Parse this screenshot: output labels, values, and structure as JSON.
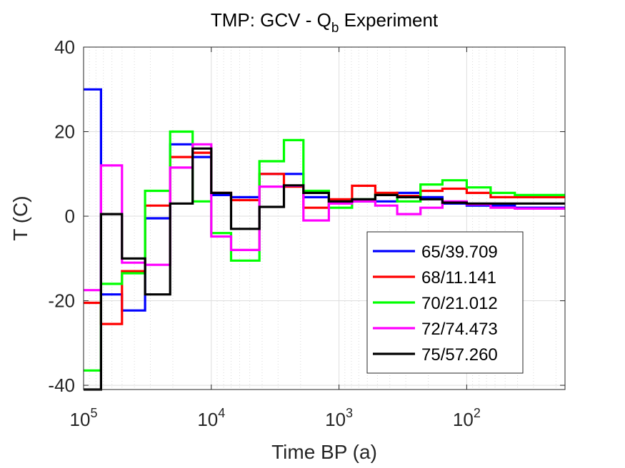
{
  "chart_data": {
    "type": "line",
    "title_main": "TMP: GCV - Q",
    "title_sub": "b",
    "title_tail": " Experiment",
    "xlabel": "Time BP (a)",
    "ylabel": "T (C)",
    "x_scale": "log",
    "x_reversed": true,
    "xlim": [
      100000,
      17
    ],
    "ylim": [
      -41,
      40
    ],
    "x_ticks": [
      {
        "value": 100000,
        "base": "10",
        "exp": "5"
      },
      {
        "value": 10000,
        "base": "10",
        "exp": "4"
      },
      {
        "value": 1000,
        "base": "10",
        "exp": "3"
      },
      {
        "value": 100,
        "base": "10",
        "exp": "2"
      }
    ],
    "y_ticks": [
      {
        "value": 40,
        "label": "40"
      },
      {
        "value": 20,
        "label": "20"
      },
      {
        "value": 0,
        "label": "0"
      },
      {
        "value": -20,
        "label": "-20"
      },
      {
        "value": -40,
        "label": "-40"
      }
    ],
    "grid": true,
    "minor_grid": true,
    "legend_position": "lower-right",
    "edges": [
      100000,
      73000,
      50000,
      33000,
      21000,
      14000,
      10000,
      7000,
      4200,
      2700,
      1900,
      1200,
      790,
      520,
      350,
      230,
      155,
      100,
      65,
      42,
      17
    ],
    "series": [
      {
        "name": "65/39.709",
        "color": "#0000ff",
        "values": [
          30,
          -18.5,
          -22.3,
          -0.5,
          17,
          14,
          5,
          4.5,
          10,
          10,
          4.5,
          3.5,
          3.5,
          3.5,
          5.5,
          4.5,
          3,
          2.5,
          2.5,
          2
        ]
      },
      {
        "name": "68/11.141",
        "color": "#ff0000",
        "values": [
          -20.5,
          -25.5,
          -13,
          2.5,
          14,
          15,
          5.5,
          3.8,
          10,
          7,
          2,
          4,
          7.2,
          5.5,
          4.8,
          6,
          6.5,
          5.5,
          4.5,
          4.5
        ]
      },
      {
        "name": "70/21.012",
        "color": "#00ff00",
        "values": [
          -36.5,
          -16,
          -13.5,
          6,
          20,
          3.5,
          -4,
          -10.5,
          13,
          18,
          6,
          2,
          4,
          5,
          3.5,
          7.5,
          8.5,
          6.8,
          5.5,
          5
        ]
      },
      {
        "name": "72/74.473",
        "color": "#ff00ff",
        "values": [
          -17.5,
          12,
          -11,
          -11.5,
          11.5,
          17,
          -4.8,
          -8,
          7,
          7.2,
          -1,
          3,
          3.5,
          2.5,
          0.5,
          2,
          3.5,
          2.8,
          2,
          1.8
        ]
      },
      {
        "name": "75/57.260",
        "color": "#000000",
        "values": [
          -41,
          0.5,
          -10,
          -18.5,
          3,
          16,
          5.5,
          -3,
          2.2,
          7.3,
          5.5,
          3.5,
          4,
          5,
          4.5,
          4,
          3.2,
          3,
          3,
          3
        ]
      }
    ]
  }
}
